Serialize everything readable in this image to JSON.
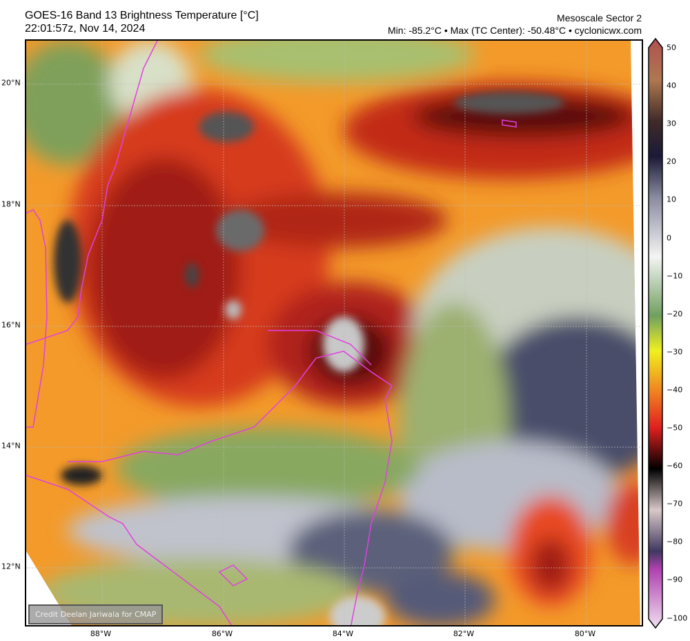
{
  "header": {
    "title": "GOES-16 Band 13 Brightness Temperature [°C]",
    "timestamp": "22:01:57z, Nov 14, 2024",
    "sector": "Mesoscale Sector 2",
    "stats": "Min: -85.2°C • Max (TC Center): -50.48°C • cyclonicwx.com"
  },
  "map": {
    "lat_labels": [
      "20°N",
      "18°N",
      "16°N",
      "14°N",
      "12°N"
    ],
    "lon_labels": [
      "88°W",
      "86°W",
      "84°W",
      "82°W",
      "80°W"
    ],
    "credit": "Credit Deelan Jariwala for CMAP",
    "coastline_color": "#e040e0"
  },
  "colorbar": {
    "ticks": [
      "50",
      "40",
      "30",
      "20",
      "10",
      "0",
      "−10",
      "−20",
      "−30",
      "−40",
      "−50",
      "−60",
      "−70",
      "−80",
      "−90",
      "−100"
    ],
    "range": [
      -100,
      50
    ],
    "units": "°C"
  }
}
